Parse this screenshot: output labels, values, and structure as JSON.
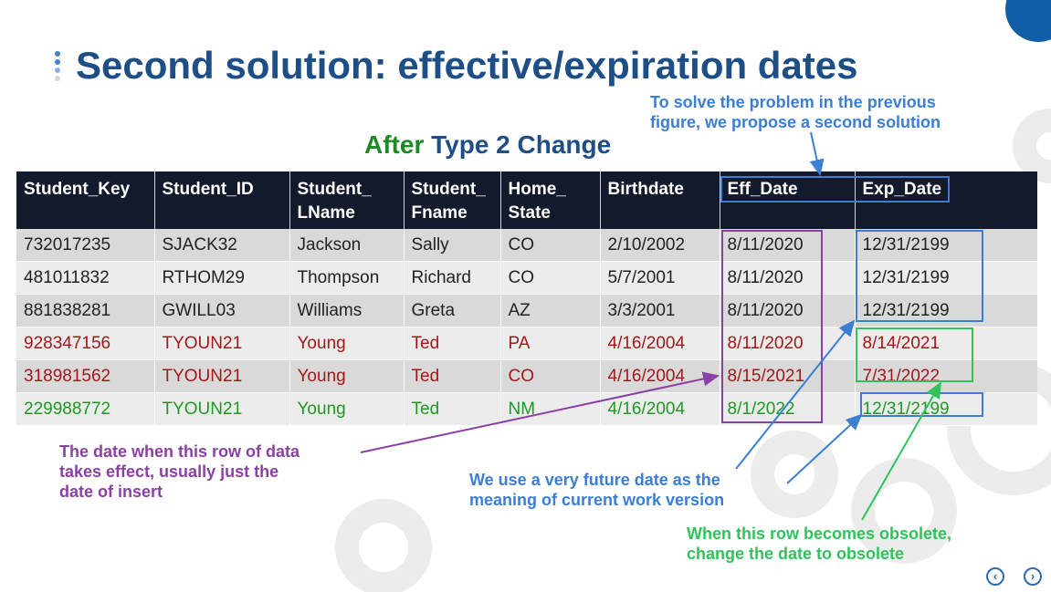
{
  "slide": {
    "title": "Second solution: effective/expiration dates",
    "subtitle_after": "After",
    "subtitle_rest": "Type 2 Change"
  },
  "notes": {
    "top_line1": "To solve the problem in the previous",
    "top_line2": "figure, we propose a second solution",
    "purple_line1": "The date when this row of data",
    "purple_line2": "takes effect, usually just the",
    "purple_line3": "date of insert",
    "blue_line1": "We use a very future date as the",
    "blue_line2": "meaning of current work version",
    "green_line1": "When this row becomes obsolete,",
    "green_line2": "change the date to obsolete"
  },
  "table": {
    "headers": [
      {
        "line1": "Student_Key",
        "line2": ""
      },
      {
        "line1": "Student_ID",
        "line2": ""
      },
      {
        "line1": "Student_",
        "line2": "LName"
      },
      {
        "line1": "Student_",
        "line2": "Fname"
      },
      {
        "line1": "Home_",
        "line2": "State"
      },
      {
        "line1": "Birthdate",
        "line2": ""
      },
      {
        "line1": "Eff_Date",
        "line2": ""
      },
      {
        "line1": "Exp_Date",
        "line2": ""
      }
    ],
    "rows": [
      [
        "732017235",
        "SJACK32",
        "Jackson",
        "Sally",
        "CO",
        "2/10/2002",
        "8/11/2020",
        "12/31/2199"
      ],
      [
        "481011832",
        "RTHOM29",
        "Thompson",
        "Richard",
        "CO",
        "5/7/2001",
        "8/11/2020",
        "12/31/2199"
      ],
      [
        "881838281",
        "GWILL03",
        "Williams",
        "Greta",
        "AZ",
        "3/3/2001",
        "8/11/2020",
        "12/31/2199"
      ],
      [
        "928347156",
        "TYOUN21",
        "Young",
        "Ted",
        "PA",
        "4/16/2004",
        "8/11/2020",
        "8/14/2021"
      ],
      [
        "318981562",
        "TYOUN21",
        "Young",
        "Ted",
        "CO",
        "4/16/2004",
        "8/15/2021",
        "7/31/2022"
      ],
      [
        "229988772",
        "TYOUN21",
        "Young",
        "Ted",
        "NM",
        "4/16/2004",
        "8/1/2022",
        "12/31/2199"
      ]
    ]
  },
  "colors": {
    "title": "#1e4e86",
    "after": "#1a8a22",
    "note_blue": "#3a7fd4",
    "note_purple": "#8c3fa6",
    "note_green": "#2ec45a",
    "row_red": "#a31818",
    "row_green": "#1e9a23"
  },
  "nav": {
    "prev_icon": "chevron-left-icon",
    "next_icon": "chevron-right-icon"
  }
}
